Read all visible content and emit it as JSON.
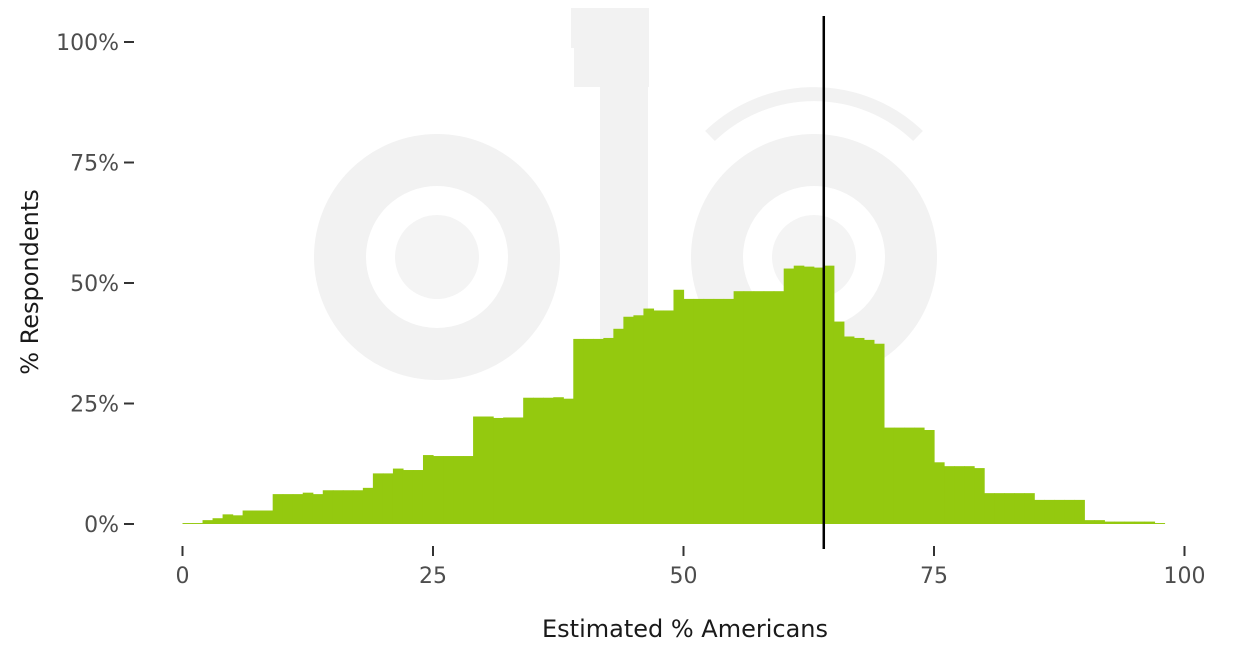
{
  "chart_data": {
    "type": "area",
    "title": "",
    "xlabel": "Estimated % Americans",
    "ylabel": "% Respondents",
    "xlim": [
      0,
      100
    ],
    "ylim": [
      0,
      100
    ],
    "x_ticks": [
      "0",
      "25",
      "50",
      "75",
      "100"
    ],
    "x_tick_values": [
      0,
      25,
      50,
      75,
      100
    ],
    "y_ticks": [
      "0%",
      "25%",
      "50%",
      "75%",
      "100%"
    ],
    "y_tick_values": [
      0,
      25,
      50,
      75,
      100
    ],
    "grid": false,
    "fill_color": "#94c90f",
    "reference_line": {
      "x": 64,
      "color": "#000000"
    },
    "x": [
      0,
      1,
      2,
      3,
      4,
      5,
      6,
      7,
      8,
      9,
      10,
      11,
      12,
      13,
      14,
      15,
      16,
      17,
      18,
      19,
      20,
      21,
      22,
      23,
      24,
      25,
      26,
      27,
      28,
      29,
      30,
      31,
      32,
      33,
      34,
      35,
      36,
      37,
      38,
      39,
      40,
      41,
      42,
      43,
      44,
      45,
      46,
      47,
      48,
      49,
      50,
      51,
      52,
      53,
      54,
      55,
      56,
      57,
      58,
      59,
      60,
      61,
      62,
      63,
      64,
      65,
      66,
      67,
      68,
      69,
      70,
      71,
      72,
      73,
      74,
      75,
      76,
      77,
      78,
      79,
      80,
      81,
      82,
      83,
      84,
      85,
      86,
      87,
      88,
      89,
      90,
      91,
      92,
      93,
      94,
      95,
      96,
      97
    ],
    "values": [
      0.2,
      0.2,
      0.8,
      1.2,
      2.0,
      1.8,
      2.8,
      2.8,
      2.8,
      6.2,
      6.2,
      6.2,
      6.5,
      6.2,
      7.0,
      7.0,
      7.0,
      7.0,
      7.5,
      10.5,
      10.5,
      11.5,
      11.2,
      11.2,
      14.3,
      14.1,
      14.1,
      14.1,
      14.1,
      22.3,
      22.3,
      22.0,
      22.1,
      22.1,
      26.2,
      26.2,
      26.2,
      26.3,
      26.0,
      38.4,
      38.4,
      38.4,
      38.6,
      40.5,
      43.0,
      43.3,
      44.7,
      44.3,
      44.3,
      48.6,
      46.7,
      46.7,
      46.7,
      46.7,
      46.7,
      48.3,
      48.3,
      48.3,
      48.3,
      48.3,
      53.0,
      53.6,
      53.4,
      53.2,
      53.6,
      42.0,
      38.9,
      38.6,
      38.2,
      37.4,
      20.0,
      20.0,
      20.0,
      20.0,
      19.5,
      12.8,
      12.0,
      12.0,
      12.0,
      11.6,
      6.4,
      6.4,
      6.4,
      6.4,
      6.4,
      5.0,
      5.0,
      5.0,
      5.0,
      5.0,
      0.8,
      0.8,
      0.5,
      0.5,
      0.5,
      0.5,
      0.5,
      0.2
    ]
  }
}
